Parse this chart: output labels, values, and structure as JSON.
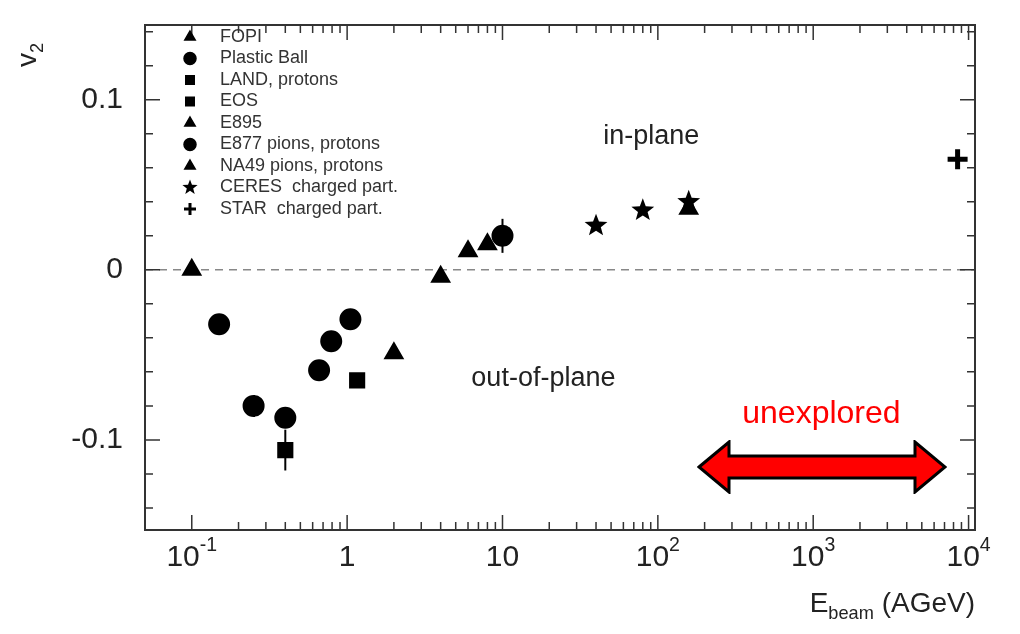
{
  "chart_data": {
    "type": "scatter",
    "xlabel": "E$_{beam}$ (AGeV)",
    "ylabel": "v$_{2}$",
    "annotations": [
      "in-plane",
      "out-of-plane",
      "unexplored"
    ],
    "log": "x",
    "grid": false,
    "legend": "top left",
    "xlim": [
      0.05,
      11000
    ],
    "ylim": [
      -0.153,
      0.144
    ],
    "xticks": [
      {
        "value": 0.1,
        "label": "10$^{-1}$"
      },
      {
        "value": 0.2,
        "label": null
      },
      {
        "value": 0.3,
        "label": null
      },
      {
        "value": 0.4,
        "label": null
      },
      {
        "value": 0.5,
        "label": null
      },
      {
        "value": 0.6,
        "label": null
      },
      {
        "value": 0.7,
        "label": null
      },
      {
        "value": 0.8,
        "label": null
      },
      {
        "value": 0.9,
        "label": null
      },
      {
        "value": 1,
        "label": "1"
      },
      {
        "value": 2,
        "label": null
      },
      {
        "value": 3,
        "label": null
      },
      {
        "value": 4,
        "label": null
      },
      {
        "value": 5,
        "label": null
      },
      {
        "value": 6,
        "label": null
      },
      {
        "value": 7,
        "label": null
      },
      {
        "value": 8,
        "label": null
      },
      {
        "value": 9,
        "label": null
      },
      {
        "value": 10,
        "label": "10"
      },
      {
        "value": 20,
        "label": null
      },
      {
        "value": 30,
        "label": null
      },
      {
        "value": 40,
        "label": null
      },
      {
        "value": 50,
        "label": null
      },
      {
        "value": 60,
        "label": null
      },
      {
        "value": 70,
        "label": null
      },
      {
        "value": 80,
        "label": null
      },
      {
        "value": 90,
        "label": null
      },
      {
        "value": 100,
        "label": "10$^{2}$"
      },
      {
        "value": 200,
        "label": null
      },
      {
        "value": 300,
        "label": null
      },
      {
        "value": 400,
        "label": null
      },
      {
        "value": 500,
        "label": null
      },
      {
        "value": 600,
        "label": null
      },
      {
        "value": 700,
        "label": null
      },
      {
        "value": 800,
        "label": null
      },
      {
        "value": 900,
        "label": null
      },
      {
        "value": 1000,
        "label": "10$^{3}$"
      },
      {
        "value": 2000,
        "label": null
      },
      {
        "value": 3000,
        "label": null
      },
      {
        "value": 4000,
        "label": null
      },
      {
        "value": 5000,
        "label": null
      },
      {
        "value": 6000,
        "label": null
      },
      {
        "value": 7000,
        "label": null
      },
      {
        "value": 8000,
        "label": null
      },
      {
        "value": 9000,
        "label": null
      },
      {
        "value": 10000,
        "label": "10$^{4}$"
      }
    ],
    "yticks": [
      {
        "value": -0.14,
        "label": null
      },
      {
        "value": -0.12,
        "label": null
      },
      -0.1,
      {
        "value": -0.08,
        "label": null
      },
      {
        "value": -0.06,
        "label": null
      },
      {
        "value": -0.04,
        "label": null
      },
      {
        "value": -0.02,
        "label": null
      },
      0,
      {
        "value": 0.02,
        "label": null
      },
      {
        "value": 0.04,
        "label": null
      },
      {
        "value": 0.06,
        "label": null
      },
      {
        "value": 0.08,
        "label": null
      },
      0.1,
      {
        "value": 0.12,
        "label": null
      },
      {
        "value": 0.14,
        "label": null
      }
    ],
    "ref_lines": [
      {
        "axis": "y",
        "value": 0,
        "color": "#888888",
        "line_style": "dashed"
      }
    ],
    "series": [
      {
        "name": "FOPI",
        "color": "#000000",
        "marker": "triangle",
        "x": [
          0.1
        ],
        "values": [
          0.0
        ]
      },
      {
        "name": "Plastic Ball",
        "color": "#000000",
        "marker": "circle",
        "x": [
          0.15,
          0.25,
          0.4,
          0.66,
          0.79,
          1.05
        ],
        "values": [
          -0.032,
          -0.08,
          -0.087,
          -0.059,
          -0.042,
          -0.029
        ]
      },
      {
        "name": "LAND, protons",
        "color": "#000000",
        "marker": "square",
        "x": [
          0.4
        ],
        "values": [
          -0.106
        ],
        "errors": [
          0.012
        ]
      },
      {
        "name": "EOS",
        "color": "#000000",
        "marker": "square",
        "x": [
          1.16
        ],
        "values": [
          -0.065
        ]
      },
      {
        "name": "E895",
        "color": "#000000",
        "marker": "triangle",
        "x": [
          2,
          4,
          6,
          8
        ],
        "values": [
          -0.049,
          -0.004,
          0.011,
          0.015
        ]
      },
      {
        "name": "E877 pions, protons",
        "color": "#000000",
        "marker": "circle",
        "x": [
          10
        ],
        "values": [
          0.02
        ],
        "errors": [
          0.01
        ]
      },
      {
        "name": "NA49 pions, protons",
        "color": "#000000",
        "marker": "triangle",
        "x": [
          158
        ],
        "values": [
          0.036
        ]
      },
      {
        "name": "CERES  charged part.",
        "color": "#000000",
        "marker": "star",
        "x": [
          40,
          80,
          158
        ],
        "values": [
          0.026,
          0.035,
          0.04
        ]
      },
      {
        "name": "STAR  charged part.",
        "color": "#000000",
        "marker": "cross",
        "x": [
          8500
        ],
        "values": [
          0.065
        ]
      }
    ]
  }
}
